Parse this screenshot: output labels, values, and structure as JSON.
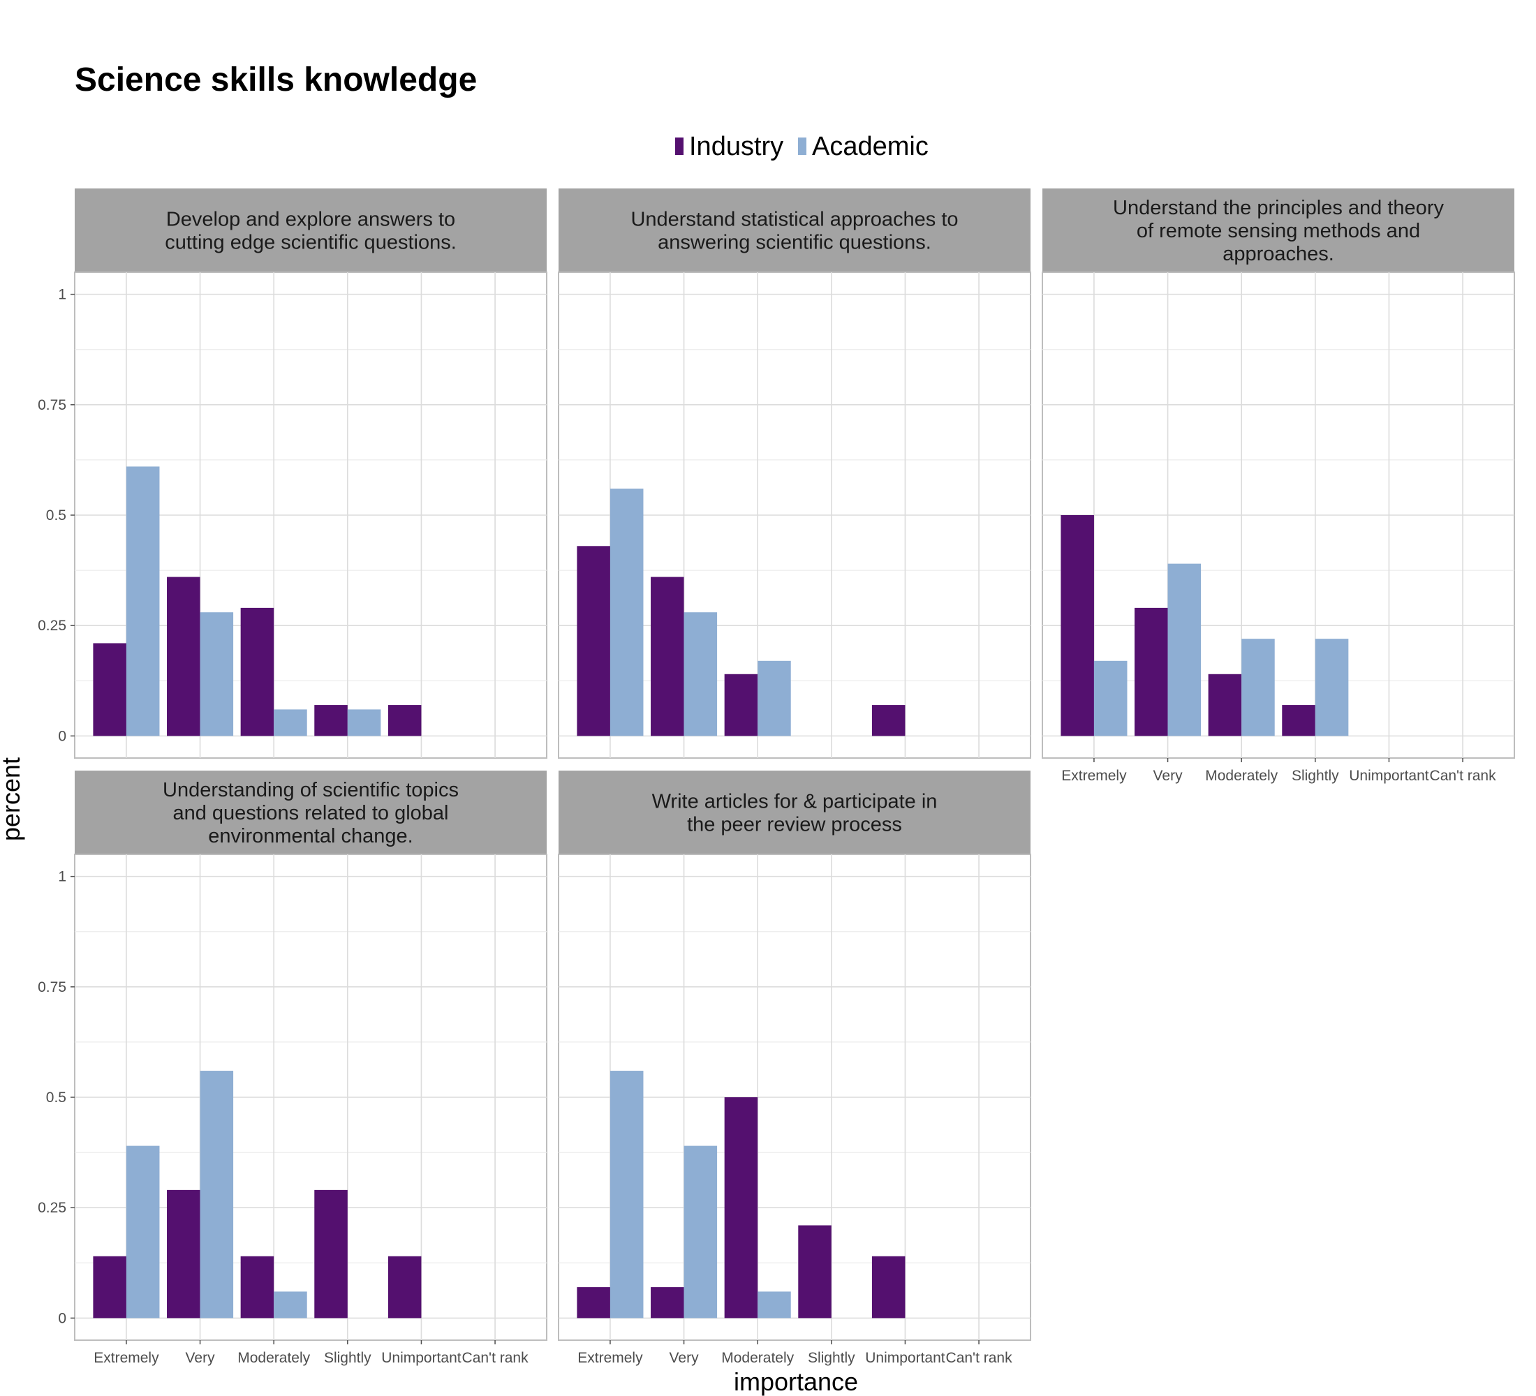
{
  "chart_data": {
    "type": "bar",
    "title": "Science skills knowledge",
    "xlabel": "importance",
    "ylabel": "percent",
    "ylim": [
      -0.05,
      1.05
    ],
    "yticks": [
      0,
      0.25,
      0.5,
      0.75,
      1
    ],
    "ytick_labels": [
      "0",
      "0.25",
      "0.5",
      "0.75",
      "1"
    ],
    "categories": [
      "Extremely",
      "Very",
      "Moderately",
      "Slightly",
      "Unimportant",
      "Can't rank"
    ],
    "grid": true,
    "legend_position": "top-center",
    "series": [
      {
        "name": "Industry",
        "color": "#54106f"
      },
      {
        "name": "Academic",
        "color": "#8eaed3"
      }
    ],
    "facets": [
      {
        "label": "Develop and explore answers to\ncutting edge scientific questions.",
        "series": [
          {
            "name": "Industry",
            "values": [
              0.21,
              0.36,
              0.29,
              0.07,
              0.07,
              null
            ]
          },
          {
            "name": "Academic",
            "values": [
              0.61,
              0.28,
              0.06,
              0.06,
              null,
              null
            ]
          }
        ]
      },
      {
        "label": "Understand statistical approaches to\nanswering scientific questions.",
        "series": [
          {
            "name": "Industry",
            "values": [
              0.43,
              0.36,
              0.14,
              null,
              0.07,
              null
            ]
          },
          {
            "name": "Academic",
            "values": [
              0.56,
              0.28,
              0.17,
              null,
              null,
              null
            ]
          }
        ]
      },
      {
        "label": "Understand the principles and theory\nof remote sensing methods and\napproaches.",
        "series": [
          {
            "name": "Industry",
            "values": [
              0.5,
              0.29,
              0.14,
              0.07,
              null,
              null
            ]
          },
          {
            "name": "Academic",
            "values": [
              0.17,
              0.39,
              0.22,
              0.22,
              null,
              null
            ]
          }
        ]
      },
      {
        "label": "Understanding of scientific topics\nand questions related to global\nenvironmental change.",
        "series": [
          {
            "name": "Industry",
            "values": [
              0.14,
              0.29,
              0.14,
              0.29,
              0.14,
              null
            ]
          },
          {
            "name": "Academic",
            "values": [
              0.39,
              0.56,
              0.06,
              null,
              null,
              null
            ]
          }
        ]
      },
      {
        "label": "Write articles for & participate in\nthe peer review process",
        "series": [
          {
            "name": "Industry",
            "values": [
              0.07,
              0.07,
              0.5,
              0.21,
              0.14,
              null
            ]
          },
          {
            "name": "Academic",
            "values": [
              0.56,
              0.39,
              0.06,
              null,
              null,
              null
            ]
          }
        ]
      }
    ]
  }
}
